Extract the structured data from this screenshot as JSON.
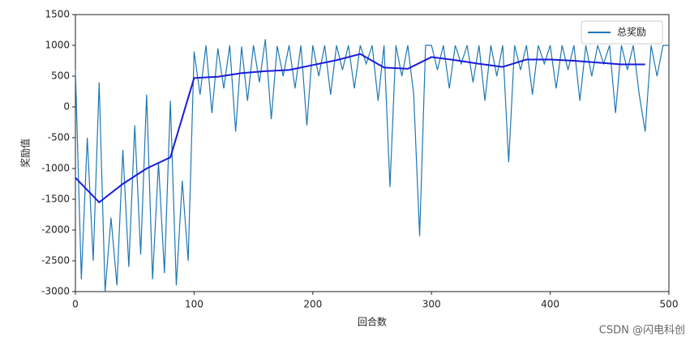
{
  "chart_data": {
    "type": "line",
    "x_label": "回合数",
    "y_label": "奖励值",
    "footer": "CSDN @闪电科创",
    "xlim": [
      0,
      500
    ],
    "xticks": [
      0,
      100,
      200,
      300,
      400,
      500
    ],
    "ylim": [
      -3000,
      1500
    ],
    "yticks": [
      -3000,
      -2500,
      -2000,
      -1500,
      -1000,
      -500,
      0,
      500,
      1000,
      1500
    ],
    "legend": "upper right",
    "series": [
      {
        "name": "总奖励",
        "color": "#1f77b4",
        "x": [
          0,
          5,
          10,
          15,
          20,
          25,
          30,
          35,
          40,
          45,
          50,
          55,
          60,
          65,
          70,
          75,
          80,
          85,
          90,
          95,
          100,
          105,
          110,
          115,
          120,
          125,
          130,
          135,
          140,
          145,
          150,
          155,
          160,
          165,
          170,
          175,
          180,
          185,
          190,
          195,
          200,
          205,
          210,
          215,
          220,
          225,
          230,
          235,
          240,
          245,
          250,
          255,
          260,
          265,
          270,
          275,
          280,
          285,
          290,
          295,
          300,
          305,
          310,
          315,
          320,
          325,
          330,
          335,
          340,
          345,
          350,
          355,
          360,
          365,
          370,
          375,
          380,
          385,
          390,
          395,
          400,
          405,
          410,
          415,
          420,
          425,
          430,
          435,
          440,
          445,
          450,
          455,
          460,
          465,
          470,
          475,
          480,
          485,
          490,
          495,
          500
        ],
        "values": [
          600,
          -2800,
          -500,
          -2500,
          400,
          -3000,
          -1800,
          -2900,
          -700,
          -2600,
          -300,
          -2400,
          200,
          -2800,
          -900,
          -2700,
          100,
          -2900,
          -1200,
          -2500,
          900,
          200,
          1000,
          -100,
          950,
          300,
          1000,
          -400,
          980,
          100,
          1000,
          400,
          1100,
          -200,
          990,
          500,
          1000,
          300,
          1000,
          -300,
          1000,
          500,
          1000,
          200,
          1000,
          600,
          1000,
          300,
          1000,
          700,
          1000,
          100,
          1000,
          -1300,
          1000,
          500,
          1000,
          200,
          -2100,
          1000,
          1000,
          600,
          1000,
          300,
          1000,
          700,
          1000,
          400,
          1000,
          100,
          1000,
          500,
          1000,
          -900,
          1000,
          600,
          1000,
          200,
          1000,
          700,
          1000,
          300,
          1000,
          600,
          1000,
          100,
          1000,
          500,
          1000,
          700,
          1000,
          -100,
          1000,
          600,
          1000,
          200,
          -400,
          1000,
          500,
          1000,
          1000
        ]
      },
      {
        "color": "#1a1adb",
        "x": [
          0,
          20,
          40,
          60,
          80,
          100,
          120,
          140,
          160,
          180,
          200,
          220,
          240,
          260,
          280,
          300,
          320,
          340,
          360,
          380,
          400,
          420,
          440,
          460,
          480
        ],
        "values": [
          -1150,
          -1550,
          -1250,
          -1000,
          -820,
          470,
          490,
          550,
          580,
          600,
          680,
          760,
          860,
          640,
          620,
          810,
          760,
          700,
          650,
          770,
          770,
          750,
          720,
          690,
          690
        ]
      }
    ]
  }
}
